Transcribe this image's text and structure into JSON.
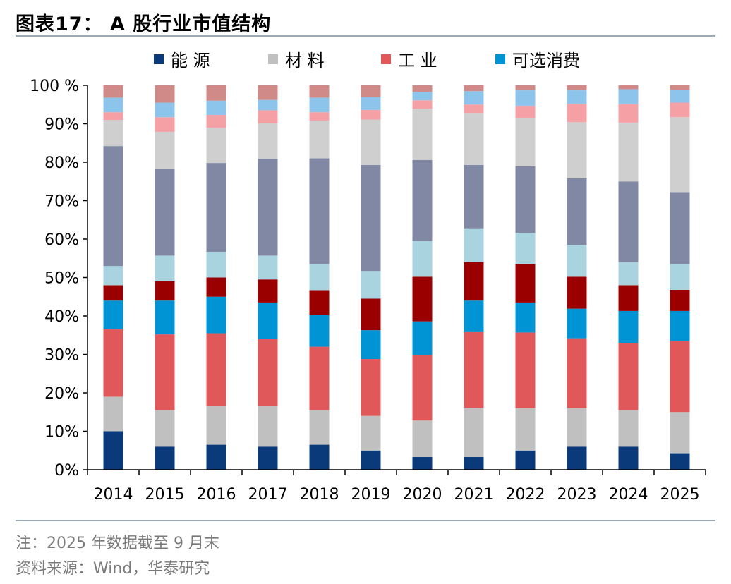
{
  "title": "图表17：  A 股行业市值结构",
  "footnote": "注：2025 年数据截至 9 月末",
  "source": "资料来源：Wind，华泰研究",
  "chart_data": {
    "type": "bar",
    "stacked": true,
    "categories": [
      "2014",
      "2015",
      "2016",
      "2017",
      "2018",
      "2019",
      "2020",
      "2021",
      "2022",
      "2023",
      "2024",
      "2025"
    ],
    "ylim": [
      0,
      100
    ],
    "yticks": [
      "0%",
      "10%",
      "20%",
      "30%",
      "40%",
      "50%",
      "60%",
      "70%",
      "80%",
      "90%",
      "100 %"
    ],
    "legend": [
      "能 源",
      "材 料",
      "工 业",
      "可选消费"
    ],
    "series": [
      {
        "name": "能源",
        "color": "#0b3a7a",
        "values": [
          10,
          6,
          6.5,
          6,
          6.5,
          5,
          3.3,
          3.3,
          5,
          6,
          6,
          4.3
        ]
      },
      {
        "name": "材料",
        "color": "#c0c0c0",
        "values": [
          9,
          9.5,
          10,
          10.5,
          9,
          9,
          9.5,
          12.8,
          11,
          10,
          9.5,
          10.7
        ]
      },
      {
        "name": "工业",
        "color": "#e0585a",
        "values": [
          17.5,
          19.7,
          19,
          17.5,
          16.5,
          14.8,
          17,
          19.7,
          19.7,
          18.2,
          17.5,
          18.5
        ]
      },
      {
        "name": "可选消费",
        "color": "#0094d4",
        "values": [
          7.5,
          8.8,
          9.5,
          9.5,
          8.2,
          7.5,
          8.8,
          8.2,
          7.8,
          7.7,
          8.3,
          7.8
        ]
      },
      {
        "name": "",
        "color": "#9b0000",
        "values": [
          4,
          5,
          5,
          6,
          6.5,
          8.2,
          11.6,
          10,
          10,
          8.3,
          6.7,
          5.5
        ]
      },
      {
        "name": "",
        "color": "#a8d3df",
        "values": [
          5,
          6.7,
          6.7,
          6.2,
          6.8,
          7.2,
          9.3,
          8.8,
          8.1,
          8.3,
          6,
          6.7
        ]
      },
      {
        "name": "",
        "color": "#8088a4",
        "values": [
          31.2,
          22.5,
          23.1,
          25.2,
          27.5,
          27.6,
          21.1,
          16.5,
          17.3,
          17.3,
          21,
          18.7
        ]
      },
      {
        "name": "",
        "color": "#cfcfcf",
        "values": [
          6.8,
          9.7,
          9.2,
          9.2,
          9.8,
          11.8,
          13.3,
          13.5,
          12.5,
          14.6,
          15.3,
          19.5
        ]
      },
      {
        "name": "",
        "color": "#f4a0a4",
        "values": [
          2,
          3.8,
          3.3,
          3.4,
          2.2,
          2.5,
          2.2,
          2.2,
          3.3,
          4.8,
          4.8,
          3.8
        ]
      },
      {
        "name": "",
        "color": "#8cc4ec",
        "values": [
          3.8,
          3.8,
          3.7,
          2.7,
          3.8,
          3.3,
          2.2,
          3.5,
          4,
          3.5,
          3.9,
          3.3
        ]
      },
      {
        "name": "",
        "color": "#d08a88",
        "values": [
          3.2,
          4.5,
          4,
          3.8,
          3.2,
          3.1,
          1.7,
          1.5,
          1.3,
          1.3,
          1,
          1.2
        ]
      }
    ]
  }
}
